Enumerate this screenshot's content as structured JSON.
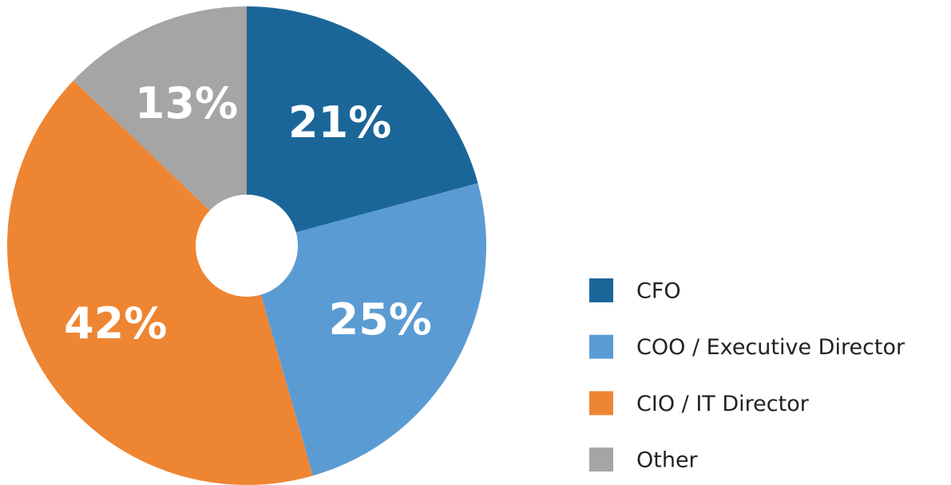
{
  "chart_data": {
    "type": "donut",
    "categories": [
      "CFO",
      "COO / Executive Director",
      "CIO / IT Director",
      "Other"
    ],
    "values": [
      21,
      25,
      42,
      13
    ],
    "value_labels": [
      "21%",
      "25%",
      "42%",
      "13%"
    ],
    "colors": [
      "#1b6699",
      "#5b9bd3",
      "#ee8532",
      "#a5a5a5"
    ],
    "legend": "right"
  }
}
